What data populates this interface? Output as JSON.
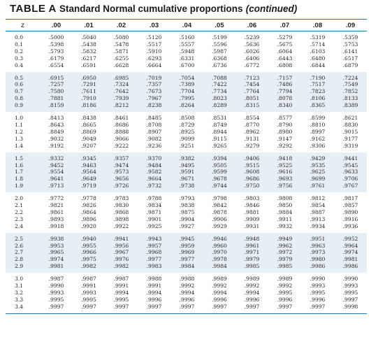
{
  "title": {
    "tag": "TABLE A",
    "rest": "Standard Normal cumulative proportions",
    "continued": "(continued)"
  },
  "columns": [
    "z",
    ".00",
    ".01",
    ".02",
    ".03",
    ".04",
    ".05",
    ".06",
    ".07",
    ".08",
    ".09"
  ],
  "rows": [
    {
      "z": "0.0",
      "v": [
        ".5000",
        ".5040",
        ".5080",
        ".5120",
        ".5160",
        ".5199",
        ".5239",
        ".5279",
        ".5319",
        ".5359"
      ]
    },
    {
      "z": "0.1",
      "v": [
        ".5398",
        ".5438",
        ".5478",
        ".5517",
        ".5557",
        ".5596",
        ".5636",
        ".5675",
        ".5714",
        ".5753"
      ]
    },
    {
      "z": "0.2",
      "v": [
        ".5793",
        ".5832",
        ".5871",
        ".5910",
        ".5948",
        ".5987",
        ".6026",
        ".6064",
        ".6103",
        ".6141"
      ]
    },
    {
      "z": "0.3",
      "v": [
        ".6179",
        ".6217",
        ".6255",
        ".6293",
        ".6331",
        ".6368",
        ".6406",
        ".6443",
        ".6480",
        ".6517"
      ]
    },
    {
      "z": "0.4",
      "v": [
        ".6554",
        ".6591",
        ".6628",
        ".6664",
        ".6700",
        ".6736",
        ".6772",
        ".6808",
        ".6844",
        ".6879"
      ]
    },
    {
      "z": "0.5",
      "v": [
        ".6915",
        ".6950",
        ".6985",
        ".7019",
        ".7054",
        ".7088",
        ".7123",
        ".7157",
        ".7190",
        ".7224"
      ]
    },
    {
      "z": "0.6",
      "v": [
        ".7257",
        ".7291",
        ".7324",
        ".7357",
        ".7389",
        ".7422",
        ".7454",
        ".7486",
        ".7517",
        ".7549"
      ]
    },
    {
      "z": "0.7",
      "v": [
        ".7580",
        ".7611",
        ".7642",
        ".7673",
        ".7704",
        ".7734",
        ".7764",
        ".7794",
        ".7823",
        ".7852"
      ]
    },
    {
      "z": "0.8",
      "v": [
        ".7881",
        ".7910",
        ".7939",
        ".7967",
        ".7995",
        ".8023",
        ".8051",
        ".8078",
        ".8106",
        ".8133"
      ]
    },
    {
      "z": "0.9",
      "v": [
        ".8159",
        ".8186",
        ".8212",
        ".8238",
        ".8264",
        ".8289",
        ".8315",
        ".8340",
        ".8365",
        ".8389"
      ]
    },
    {
      "z": "1.0",
      "v": [
        ".8413",
        ".8438",
        ".8461",
        ".8485",
        ".8508",
        ".8531",
        ".8554",
        ".8577",
        ".8599",
        ".8621"
      ]
    },
    {
      "z": "1.1",
      "v": [
        ".8643",
        ".8665",
        ".8686",
        ".8708",
        ".8729",
        ".8749",
        ".8770",
        ".8790",
        ".8810",
        ".8830"
      ]
    },
    {
      "z": "1.2",
      "v": [
        ".8849",
        ".8869",
        ".8888",
        ".8907",
        ".8925",
        ".8944",
        ".8962",
        ".8980",
        ".8997",
        ".9015"
      ]
    },
    {
      "z": "1.3",
      "v": [
        ".9032",
        ".9049",
        ".9066",
        ".9082",
        ".9099",
        ".9115",
        ".9131",
        ".9147",
        ".9162",
        ".9177"
      ]
    },
    {
      "z": "1.4",
      "v": [
        ".9192",
        ".9207",
        ".9222",
        ".9236",
        ".9251",
        ".9265",
        ".9279",
        ".9292",
        ".9306",
        ".9319"
      ]
    },
    {
      "z": "1.5",
      "v": [
        ".9332",
        ".9345",
        ".9357",
        ".9370",
        ".9382",
        ".9394",
        ".9406",
        ".9418",
        ".9429",
        ".9441"
      ]
    },
    {
      "z": "1.6",
      "v": [
        ".9452",
        ".9463",
        ".9474",
        ".9484",
        ".9495",
        ".9505",
        ".9515",
        ".9525",
        ".9535",
        ".9545"
      ]
    },
    {
      "z": "1.7",
      "v": [
        ".9554",
        ".9564",
        ".9573",
        ".9582",
        ".9591",
        ".9599",
        ".9608",
        ".9616",
        ".9625",
        ".9633"
      ]
    },
    {
      "z": "1.8",
      "v": [
        ".9641",
        ".9649",
        ".9656",
        ".9664",
        ".9671",
        ".9678",
        ".9686",
        ".9693",
        ".9699",
        ".9706"
      ]
    },
    {
      "z": "1.9",
      "v": [
        ".9713",
        ".9719",
        ".9726",
        ".9732",
        ".9738",
        ".9744",
        ".9750",
        ".9756",
        ".9761",
        ".9767"
      ]
    },
    {
      "z": "2.0",
      "v": [
        ".9772",
        ".9778",
        ".9783",
        ".9788",
        ".9793",
        ".9798",
        ".9803",
        ".9808",
        ".9812",
        ".9817"
      ]
    },
    {
      "z": "2.1",
      "v": [
        ".9821",
        ".9826",
        ".9830",
        ".9834",
        ".9838",
        ".9842",
        ".9846",
        ".9850",
        ".9854",
        ".9857"
      ]
    },
    {
      "z": "2.2",
      "v": [
        ".9861",
        ".9864",
        ".9868",
        ".9871",
        ".9875",
        ".9878",
        ".9881",
        ".9884",
        ".9887",
        ".9890"
      ]
    },
    {
      "z": "2.3",
      "v": [
        ".9893",
        ".9896",
        ".9898",
        ".9901",
        ".9904",
        ".9906",
        ".9909",
        ".9911",
        ".9913",
        ".9916"
      ]
    },
    {
      "z": "2.4",
      "v": [
        ".9918",
        ".9920",
        ".9922",
        ".9925",
        ".9927",
        ".9929",
        ".9931",
        ".9932",
        ".9934",
        ".9936"
      ]
    },
    {
      "z": "2.5",
      "v": [
        ".9938",
        ".9940",
        ".9941",
        ".9943",
        ".9945",
        ".9946",
        ".9948",
        ".9949",
        ".9951",
        ".9952"
      ]
    },
    {
      "z": "2.6",
      "v": [
        ".9953",
        ".9955",
        ".9956",
        ".9957",
        ".9959",
        ".9960",
        ".9961",
        ".9962",
        ".9963",
        ".9964"
      ]
    },
    {
      "z": "2.7",
      "v": [
        ".9965",
        ".9966",
        ".9967",
        ".9968",
        ".9969",
        ".9970",
        ".9971",
        ".9972",
        ".9973",
        ".9974"
      ]
    },
    {
      "z": "2.8",
      "v": [
        ".9974",
        ".9975",
        ".9976",
        ".9977",
        ".9977",
        ".9978",
        ".9979",
        ".9979",
        ".9980",
        ".9981"
      ]
    },
    {
      "z": "2.9",
      "v": [
        ".9981",
        ".9982",
        ".9982",
        ".9983",
        ".9984",
        ".9984",
        ".9985",
        ".9985",
        ".9986",
        ".9986"
      ]
    },
    {
      "z": "3.0",
      "v": [
        ".9987",
        ".9987",
        ".9987",
        ".9988",
        ".9988",
        ".9989",
        ".9989",
        ".9989",
        ".9990",
        ".9990"
      ]
    },
    {
      "z": "3.1",
      "v": [
        ".9990",
        ".9991",
        ".9991",
        ".9991",
        ".9992",
        ".9992",
        ".9992",
        ".9992",
        ".9993",
        ".9993"
      ]
    },
    {
      "z": "3.2",
      "v": [
        ".9993",
        ".9993",
        ".9994",
        ".9994",
        ".9994",
        ".9994",
        ".9994",
        ".9995",
        ".9995",
        ".9995"
      ]
    },
    {
      "z": "3.3",
      "v": [
        ".9995",
        ".9995",
        ".9995",
        ".9996",
        ".9996",
        ".9996",
        ".9996",
        ".9996",
        ".9996",
        ".9997"
      ]
    },
    {
      "z": "3.4",
      "v": [
        ".9997",
        ".9997",
        ".9997",
        ".9997",
        ".9997",
        ".9997",
        ".9997",
        ".9997",
        ".9997",
        ".9998"
      ]
    }
  ],
  "colors": {
    "rule": "#1f78b4",
    "band": "#e7eff6",
    "text": "#1f1f1f"
  }
}
